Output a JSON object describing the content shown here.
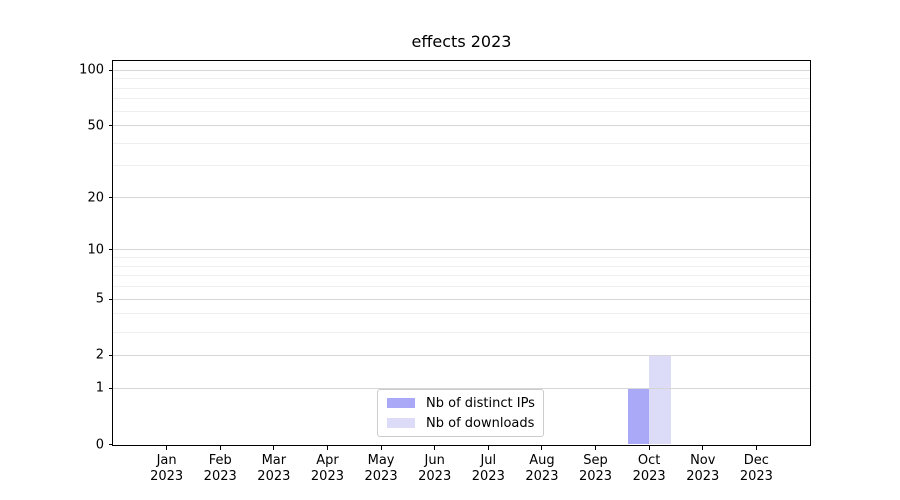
{
  "chart_data": {
    "type": "bar",
    "title": "effects 2023",
    "categories": [
      "Jan 2023",
      "Feb 2023",
      "Mar 2023",
      "Apr 2023",
      "May 2023",
      "Jun 2023",
      "Jul 2023",
      "Aug 2023",
      "Sep 2023",
      "Oct 2023",
      "Nov 2023",
      "Dec 2023"
    ],
    "series": [
      {
        "name": "Nb of distinct IPs",
        "color": "#a9a9f8",
        "values": [
          0,
          0,
          0,
          0,
          0,
          0,
          0,
          0,
          0,
          1,
          0,
          0
        ]
      },
      {
        "name": "Nb of downloads",
        "color": "#dcdcf9",
        "values": [
          0,
          0,
          0,
          0,
          0,
          0,
          0,
          0,
          0,
          2,
          0,
          0
        ]
      }
    ],
    "xlabel": "",
    "ylabel": "",
    "yscale": "log1p",
    "ylim": [
      0,
      112
    ],
    "yticks": [
      0,
      1,
      2,
      5,
      10,
      20,
      50,
      100
    ],
    "yticks_minor": [
      3,
      4,
      6,
      7,
      8,
      9,
      30,
      40,
      60,
      70,
      80,
      90
    ],
    "grid": "horizontal, drawn above bars",
    "legend_position": "lower center",
    "colors": {
      "grid_major": "#d6d6d6",
      "grid_minor": "#efefef",
      "axis": "#000000",
      "background": "#ffffff",
      "legend_border": "#cccccc"
    }
  }
}
